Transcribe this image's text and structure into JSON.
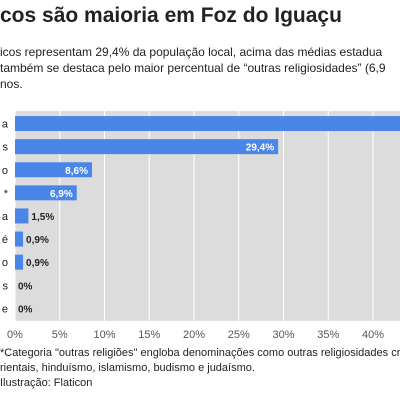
{
  "header": {
    "title": "cos são maioria em Foz do Iguaçu",
    "subtitle_lines": [
      "icos representam 29,4% da população local, acima das médias estadua",
      "também se destaca pelo maior percentual de “outras religiosidades” (6,9",
      "nos."
    ]
  },
  "footer": {
    "lines": [
      "*Categoria \"outras religiões\" engloba denominações como outras religiosidades cristã",
      "rientais, hinduísmo, islamismo, budismo e judaísmo.",
      " Ilustração: Flaticon"
    ]
  },
  "colors": {
    "bar": "#4a86e8",
    "plot_background": "#dcdcdc",
    "value_text": "#ffffff",
    "axis_text": "#555555"
  },
  "chart_data": {
    "type": "bar",
    "orientation": "horizontal",
    "categories": [
      "a",
      "s",
      "o",
      "*",
      "a",
      "é",
      "o",
      "s",
      "e"
    ],
    "values": [
      null,
      29.4,
      8.6,
      6.9,
      1.5,
      0.9,
      0.9,
      0,
      0
    ],
    "value_labels": [
      "",
      "29,4%",
      "8,6%",
      "6,9%",
      "1,5%",
      "0,9%",
      "0,9%",
      "0%",
      "0%"
    ],
    "xlim": [
      0,
      43
    ],
    "xticks": [
      0,
      5,
      10,
      15,
      20,
      25,
      30,
      35,
      40
    ],
    "xtick_labels": [
      "0%",
      "5%",
      "10%",
      "15%",
      "20%",
      "25%",
      "30%",
      "35%",
      "40%"
    ],
    "grid": "vertical"
  }
}
